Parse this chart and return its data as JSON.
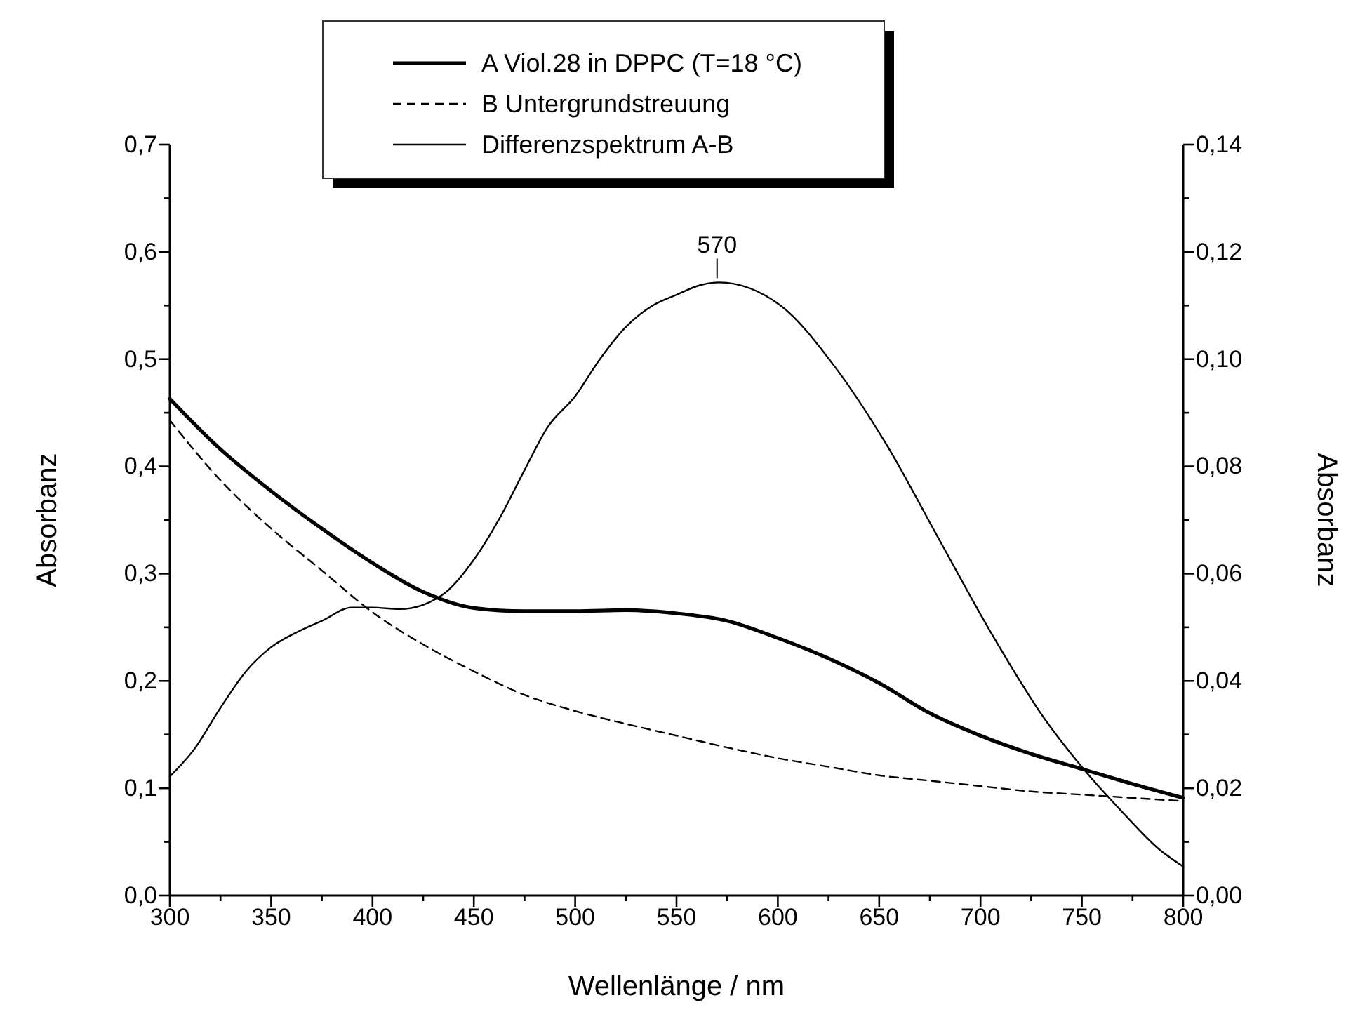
{
  "chart_data": {
    "type": "line",
    "xlabel": "Wellenlänge / nm",
    "ylabel": "Absorbanz",
    "y2label": "Absorbanz",
    "xlim": [
      300,
      800
    ],
    "xticks": [
      300,
      {
        "value": 325,
        "label": null
      },
      350,
      {
        "value": 375,
        "label": null
      },
      400,
      {
        "value": 425,
        "label": null
      },
      450,
      {
        "value": 475,
        "label": null
      },
      500,
      {
        "value": 525,
        "label": null
      },
      550,
      {
        "value": 575,
        "label": null
      },
      600,
      {
        "value": 625,
        "label": null
      },
      650,
      {
        "value": 675,
        "label": null
      },
      700,
      {
        "value": 725,
        "label": null
      },
      750,
      {
        "value": 775,
        "label": null
      },
      800
    ],
    "ylim": [
      0,
      0.7
    ],
    "yticks": [
      {
        "value": 0,
        "label": "0,0"
      },
      {
        "value": 0.05,
        "label": null
      },
      {
        "value": 0.1,
        "label": "0,1"
      },
      {
        "value": 0.15,
        "label": null
      },
      {
        "value": 0.2,
        "label": "0,2"
      },
      {
        "value": 0.25,
        "label": null
      },
      {
        "value": 0.3,
        "label": "0,3"
      },
      {
        "value": 0.35,
        "label": null
      },
      {
        "value": 0.4,
        "label": "0,4"
      },
      {
        "value": 0.45,
        "label": null
      },
      {
        "value": 0.5,
        "label": "0,5"
      },
      {
        "value": 0.55,
        "label": null
      },
      {
        "value": 0.6,
        "label": "0,6"
      },
      {
        "value": 0.65,
        "label": null
      },
      {
        "value": 0.7,
        "label": "0,7"
      }
    ],
    "y2lim": [
      0,
      0.14
    ],
    "y2ticks": [
      {
        "value": 0,
        "label": "0,00"
      },
      {
        "value": 0.01,
        "label": null
      },
      {
        "value": 0.02,
        "label": "0,02"
      },
      {
        "value": 0.03,
        "label": null
      },
      {
        "value": 0.04,
        "label": "0,04"
      },
      {
        "value": 0.05,
        "label": null
      },
      {
        "value": 0.06,
        "label": "0,06"
      },
      {
        "value": 0.07,
        "label": null
      },
      {
        "value": 0.08,
        "label": "0,08"
      },
      {
        "value": 0.09,
        "label": null
      },
      {
        "value": 0.1,
        "label": "0,10"
      },
      {
        "value": 0.11,
        "label": null
      },
      {
        "value": 0.12,
        "label": "0,12"
      },
      {
        "value": 0.13,
        "label": null
      },
      {
        "value": 0.14,
        "label": "0,14"
      }
    ],
    "x": [
      300,
      325,
      350,
      375,
      400,
      425,
      450,
      475,
      500,
      525,
      550,
      575,
      600,
      625,
      650,
      675,
      700,
      725,
      750,
      775,
      800
    ],
    "series": [
      {
        "name": "A Viol.28 in DPPC (T=18 °C)",
        "color": "#000000",
        "line_style": "solid",
        "values": [
          0.463,
          0.416,
          0.377,
          0.342,
          0.31,
          0.283,
          0.268,
          0.265,
          0.265,
          0.266,
          0.263,
          0.256,
          0.24,
          0.221,
          0.198,
          0.17,
          0.149,
          0.132,
          0.118,
          0.104,
          0.091
        ]
      },
      {
        "name": "B Untergrundstreuung",
        "color": "#000000",
        "line_style": "dashed",
        "values": [
          0.443,
          0.387,
          0.342,
          0.303,
          0.264,
          0.234,
          0.209,
          0.187,
          0.172,
          0.16,
          0.149,
          0.138,
          0.128,
          0.12,
          0.112,
          0.107,
          0.102,
          0.097,
          0.094,
          0.091,
          0.088
        ]
      },
      {
        "name": "Differenzspektrum A-B",
        "color": "#000000",
        "line_style": "solid",
        "axis": "y2",
        "x": [
          300,
          311.7,
          325,
          337.8,
          350,
          363.8,
          375,
          389.8,
          400,
          413.3,
          425,
          436.7,
          450,
          462.8,
          475,
          486.2,
          500,
          512.2,
          525,
          538.3,
          550,
          561.7,
          570.8,
          601.3,
          627.3,
          653.4,
          679.4,
          705.5,
          731.5,
          749.7,
          770.6,
          788.8,
          800
        ],
        "values": [
          0.0222,
          0.0271,
          0.035,
          0.0419,
          0.0463,
          0.0493,
          0.0512,
          0.0537,
          0.0537,
          0.0534,
          0.0542,
          0.0567,
          0.0626,
          0.0704,
          0.0793,
          0.0872,
          0.0931,
          0.1,
          0.106,
          0.11,
          0.112,
          0.1138,
          0.1143,
          0.11,
          0.099,
          0.0842,
          0.0665,
          0.0488,
          0.033,
          0.0241,
          0.0153,
          0.0084,
          0.0054
        ]
      }
    ],
    "annotations": [
      {
        "text": "570",
        "x": 570,
        "y": 0.5715
      }
    ],
    "legend": "top",
    "marker": "none"
  }
}
